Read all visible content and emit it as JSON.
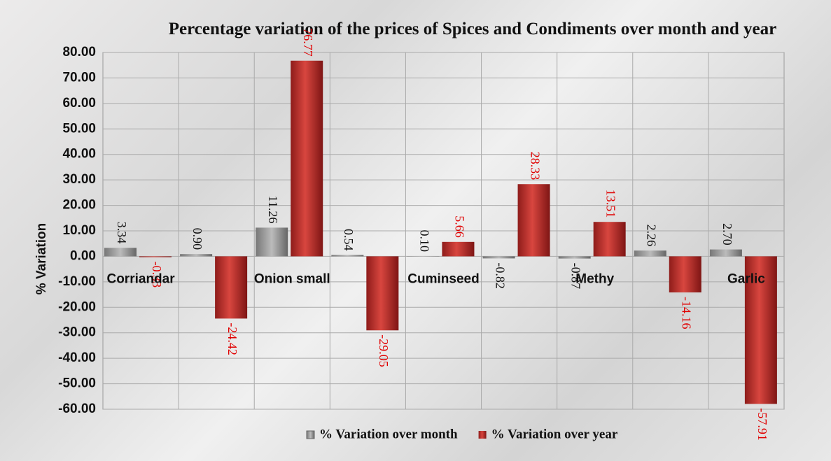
{
  "chart_data": {
    "type": "bar",
    "title": "Percentage variation of the prices of Spices and Condiments over month and year",
    "y_label": "% Variation",
    "categories": [
      "Corriandar",
      null,
      "Onion small",
      null,
      "Cuminseed",
      null,
      "Methy",
      null,
      "Garlic"
    ],
    "series": [
      {
        "name": "% Variation over month",
        "color": "#9a9a9a",
        "values": [
          3.34,
          0.9,
          11.26,
          0.54,
          0.1,
          -0.82,
          -0.87,
          2.26,
          2.7
        ],
        "value_labels": [
          "3.34",
          "0.90",
          "11.26",
          "0.54",
          "0.10",
          "-0.82",
          "-0.87",
          "2.26",
          "2.70"
        ]
      },
      {
        "name": "% Variation over year",
        "color": "#c0302e",
        "values": [
          -0.33,
          -24.42,
          76.77,
          -29.05,
          5.66,
          28.33,
          13.51,
          -14.16,
          -57.91
        ],
        "value_labels": [
          "-0.33",
          "-24.42",
          "76.77",
          "-29.05",
          "5.66",
          "28.33",
          "13.51",
          "-14.16",
          "-57.91"
        ]
      }
    ],
    "ylim": [
      -60,
      80
    ],
    "yticks": [
      {
        "value": -60,
        "label": "-60.00"
      },
      {
        "value": -50,
        "label": "-50.00"
      },
      {
        "value": -40,
        "label": "-40.00"
      },
      {
        "value": -30,
        "label": "-30.00"
      },
      {
        "value": -20,
        "label": "-20.00"
      },
      {
        "value": -10,
        "label": "-10.00"
      },
      {
        "value": 0,
        "label": "0.00"
      },
      {
        "value": 10,
        "label": "10.00"
      },
      {
        "value": 20,
        "label": "20.00"
      },
      {
        "value": 30,
        "label": "30.00"
      },
      {
        "value": 40,
        "label": "40.00"
      },
      {
        "value": 50,
        "label": "50.00"
      },
      {
        "value": 60,
        "label": "60.00"
      },
      {
        "value": 70,
        "label": "70.00"
      },
      {
        "value": 80,
        "label": "80.00"
      }
    ],
    "grid": true,
    "legend": "bottom"
  }
}
